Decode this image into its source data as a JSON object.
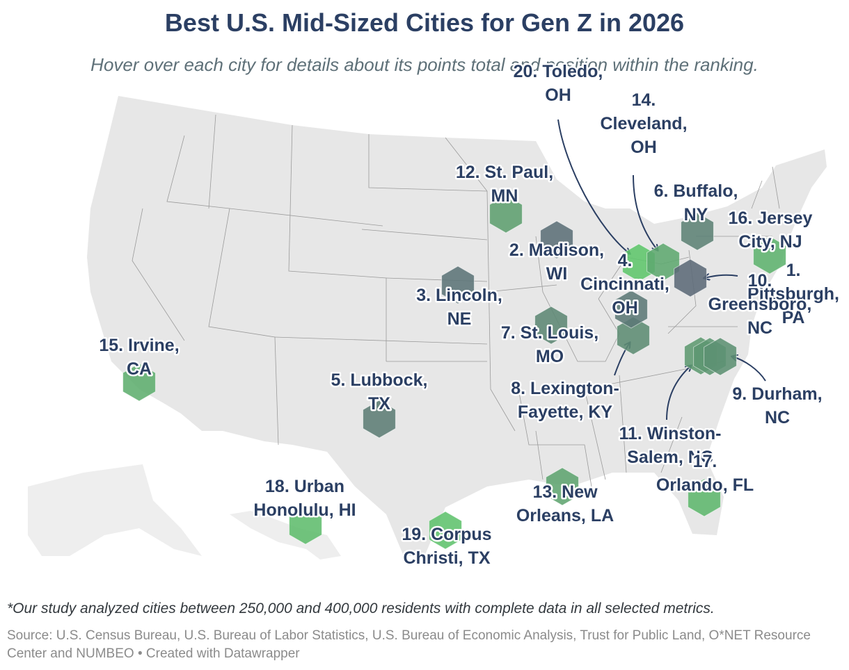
{
  "title": "Best U.S. Mid-Sized Cities for Gen Z in 2026",
  "subtitle": "Hover over each city for details about its points total and position within the ranking.",
  "footnote": "*Our study analyzed cities between 250,000 and 400,000 residents with complete data in all selected metrics.",
  "source": "Source: U.S. Census Bureau, U.S. Bureau of Labor Statistics, U.S. Bureau of Economic Analysis, Trust for Public Land, O*NET Resource Center and NUMBEO",
  "credit": "Created with Datawrapper",
  "colors": {
    "land": "#e7e7e7",
    "state_border": "#9a9a9a",
    "label": "#2b3f63",
    "rank_top": "#5c6a78",
    "rank_bottom": "#5fc66b"
  },
  "cities": [
    {
      "rank": 1,
      "name": "Pittsburgh, PA",
      "label_lines": [
        "1.",
        "Pittsburgh,",
        "PA"
      ]
    },
    {
      "rank": 2,
      "name": "Madison, WI",
      "label_lines": [
        "2. Madison,",
        "WI"
      ]
    },
    {
      "rank": 3,
      "name": "Lincoln, NE",
      "label_lines": [
        "3. Lincoln,",
        "NE"
      ]
    },
    {
      "rank": 4,
      "name": "Cincinnati, OH",
      "label_lines": [
        "4.",
        "Cincinnati,",
        "OH"
      ]
    },
    {
      "rank": 5,
      "name": "Lubbock, TX",
      "label_lines": [
        "5. Lubbock,",
        "TX"
      ]
    },
    {
      "rank": 6,
      "name": "Buffalo, NY",
      "label_lines": [
        "6. Buffalo,",
        "NY"
      ]
    },
    {
      "rank": 7,
      "name": "St. Louis, MO",
      "label_lines": [
        "7. St. Louis,",
        "MO"
      ]
    },
    {
      "rank": 8,
      "name": "Lexington-Fayette, KY",
      "label_lines": [
        "8. Lexington-",
        "Fayette, KY"
      ]
    },
    {
      "rank": 9,
      "name": "Durham, NC",
      "label_lines": [
        "9. Durham,",
        "NC"
      ]
    },
    {
      "rank": 10,
      "name": "Greensboro, NC",
      "label_lines": [
        "10.",
        "Greensboro,",
        "NC"
      ]
    },
    {
      "rank": 11,
      "name": "Winston-Salem, NC",
      "label_lines": [
        "11. Winston-",
        "Salem, NC"
      ]
    },
    {
      "rank": 12,
      "name": "St. Paul, MN",
      "label_lines": [
        "12. St. Paul,",
        "MN"
      ]
    },
    {
      "rank": 13,
      "name": "New Orleans, LA",
      "label_lines": [
        "13. New",
        "Orleans, LA"
      ]
    },
    {
      "rank": 14,
      "name": "Cleveland, OH",
      "label_lines": [
        "14.",
        "Cleveland,",
        "OH"
      ]
    },
    {
      "rank": 15,
      "name": "Irvine, CA",
      "label_lines": [
        "15. Irvine,",
        "CA"
      ]
    },
    {
      "rank": 16,
      "name": "Jersey City, NJ",
      "label_lines": [
        "16. Jersey",
        "City, NJ"
      ]
    },
    {
      "rank": 17,
      "name": "Orlando, FL",
      "label_lines": [
        "17.",
        "Orlando, FL"
      ]
    },
    {
      "rank": 18,
      "name": "Urban Honolulu, HI",
      "label_lines": [
        "18. Urban",
        "Honolulu, HI"
      ]
    },
    {
      "rank": 19,
      "name": "Corpus Christi, TX",
      "label_lines": [
        "19. Corpus",
        "Christi, TX"
      ]
    },
    {
      "rank": 20,
      "name": "Toledo, OH",
      "label_lines": [
        "20. Toledo,",
        "OH"
      ]
    }
  ]
}
